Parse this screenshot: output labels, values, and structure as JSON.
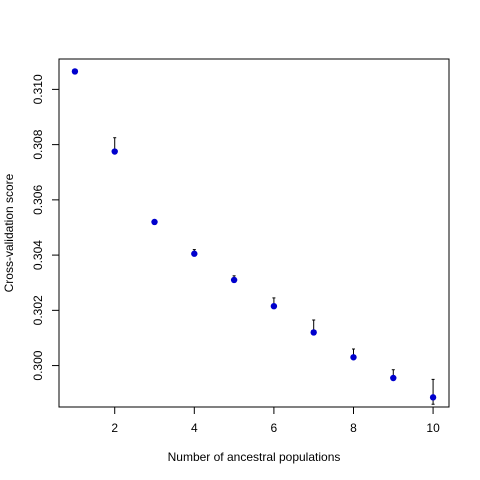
{
  "chart_data": {
    "type": "scatter",
    "title": "",
    "xlabel": "Number of ancestral populations",
    "ylabel": "Cross-validation score",
    "xlim": [
      0.6,
      10.4
    ],
    "ylim": [
      0.2985,
      0.3111
    ],
    "xticks": [
      2,
      4,
      6,
      8,
      10
    ],
    "yticks": [
      0.3,
      0.302,
      0.304,
      0.306,
      0.308,
      0.31
    ],
    "ytick_labels": [
      "0.300",
      "0.302",
      "0.304",
      "0.306",
      "0.308",
      "0.310"
    ],
    "grid": false,
    "point_color": "#0000cd",
    "series": [
      {
        "x": [
          1,
          2,
          3,
          4,
          5,
          6,
          7,
          8,
          9,
          10
        ],
        "y": [
          0.31065,
          0.30775,
          0.3052,
          0.30405,
          0.3031,
          0.30215,
          0.3012,
          0.3003,
          0.29955,
          0.29885
        ],
        "err_upper": [
          0.31065,
          0.30825,
          0.3052,
          0.3042,
          0.30325,
          0.30245,
          0.30165,
          0.3006,
          0.29985,
          0.2995
        ],
        "err_lower": [
          0.31065,
          0.30775,
          0.3052,
          0.30405,
          0.3031,
          0.30215,
          0.3012,
          0.3003,
          0.29955,
          0.2986
        ]
      }
    ]
  }
}
